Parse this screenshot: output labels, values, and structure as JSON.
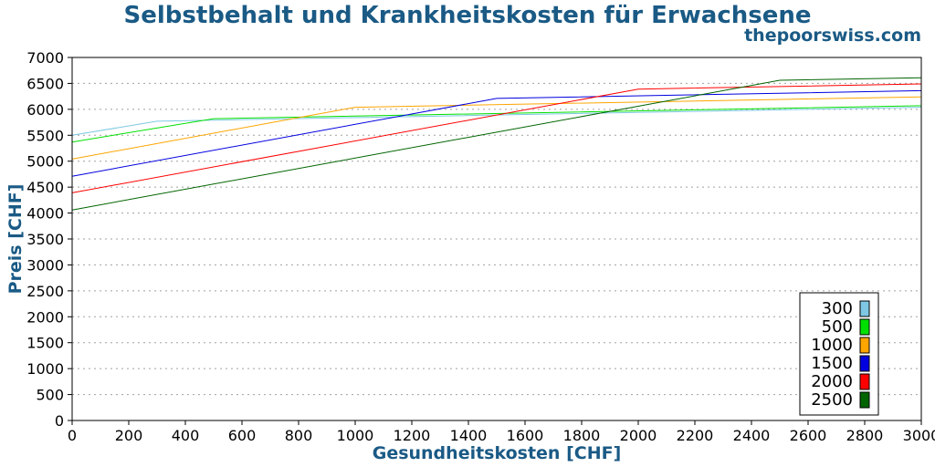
{
  "chart_data": {
    "type": "line",
    "title": "Selbstbehalt und Krankheitskosten für Erwachsene",
    "subtitle": "thepoorswiss.com",
    "xlabel": "Gesundheitskosten [CHF]",
    "ylabel": "Preis [CHF]",
    "xlim": [
      0,
      3000
    ],
    "ylim": [
      0,
      7000
    ],
    "x_ticks": [
      0,
      200,
      400,
      600,
      800,
      1000,
      1200,
      1400,
      1600,
      1800,
      2000,
      2200,
      2400,
      2600,
      2800,
      3000
    ],
    "y_ticks": [
      0,
      500,
      1000,
      1500,
      2000,
      2500,
      3000,
      3500,
      4000,
      4500,
      5000,
      5500,
      6000,
      6500,
      7000
    ],
    "grid": "horizontal dotted",
    "legend_position": "bottom-right",
    "series": [
      {
        "name": "300",
        "color": "#7ec8e3",
        "points": [
          [
            0,
            5500
          ],
          [
            300,
            5770
          ],
          [
            3000,
            6040
          ]
        ]
      },
      {
        "name": "500",
        "color": "#00e000",
        "points": [
          [
            0,
            5370
          ],
          [
            500,
            5820
          ],
          [
            3000,
            6070
          ]
        ]
      },
      {
        "name": "1000",
        "color": "#ffa500",
        "points": [
          [
            0,
            5040
          ],
          [
            1000,
            6040
          ],
          [
            3000,
            6240
          ]
        ]
      },
      {
        "name": "1500",
        "color": "#0000e0",
        "points": [
          [
            0,
            4710
          ],
          [
            1500,
            6210
          ],
          [
            3000,
            6360
          ]
        ]
      },
      {
        "name": "2000",
        "color": "#ff0000",
        "points": [
          [
            0,
            4390
          ],
          [
            2000,
            6390
          ],
          [
            3000,
            6490
          ]
        ]
      },
      {
        "name": "2500",
        "color": "#006400",
        "points": [
          [
            0,
            4060
          ],
          [
            2500,
            6560
          ],
          [
            3000,
            6610
          ]
        ]
      }
    ]
  }
}
